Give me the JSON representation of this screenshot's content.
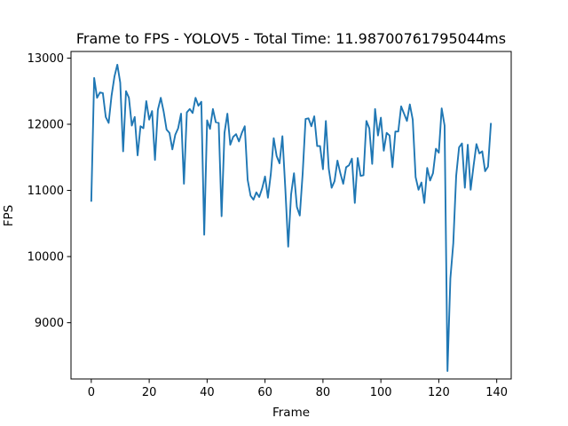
{
  "chart_data": {
    "type": "line",
    "title": "Frame to FPS - YOLOV5 - Total Time: 11.98700761795044ms",
    "xlabel": "Frame",
    "ylabel": "FPS",
    "xlim": [
      -7,
      145
    ],
    "ylim": [
      8150,
      13100
    ],
    "x_ticks": [
      0,
      20,
      40,
      60,
      80,
      100,
      120,
      140
    ],
    "y_ticks": [
      9000,
      10000,
      11000,
      12000,
      13000
    ],
    "grid": false,
    "line_color": "#1f77b4",
    "series": [
      {
        "values": [
          10830,
          12700,
          12400,
          12480,
          12470,
          12110,
          12020,
          12430,
          12720,
          12900,
          12630,
          11590,
          12500,
          12400,
          11980,
          12110,
          11530,
          11970,
          11940,
          12350,
          12070,
          12200,
          11460,
          12220,
          12400,
          12190,
          11920,
          11870,
          11620,
          11840,
          11940,
          12160,
          11100,
          12180,
          12230,
          12170,
          12400,
          12280,
          12340,
          10330,
          12060,
          11930,
          12230,
          12030,
          12020,
          10610,
          11870,
          12160,
          11690,
          11810,
          11850,
          11740,
          11870,
          11970,
          11160,
          10920,
          10860,
          10970,
          10900,
          11030,
          11210,
          10890,
          11250,
          11790,
          11520,
          11410,
          11820,
          11030,
          10150,
          10940,
          11260,
          10750,
          10620,
          11260,
          12080,
          12090,
          11970,
          12120,
          11670,
          11670,
          11320,
          12050,
          11330,
          11040,
          11140,
          11450,
          11260,
          11100,
          11350,
          11380,
          11480,
          10810,
          11490,
          11220,
          11230,
          12050,
          11940,
          11400,
          12230,
          11830,
          12100,
          11600,
          11870,
          11830,
          11350,
          11890,
          11890,
          12270,
          12160,
          12050,
          12300,
          12070,
          11200,
          11010,
          11120,
          10810,
          11340,
          11150,
          11260,
          11630,
          11570,
          12240,
          11980,
          8270,
          9670,
          10200,
          11220,
          11650,
          11710,
          11040,
          11690,
          11010,
          11370,
          11700,
          11560,
          11590,
          11290,
          11360,
          12020
        ]
      }
    ]
  }
}
